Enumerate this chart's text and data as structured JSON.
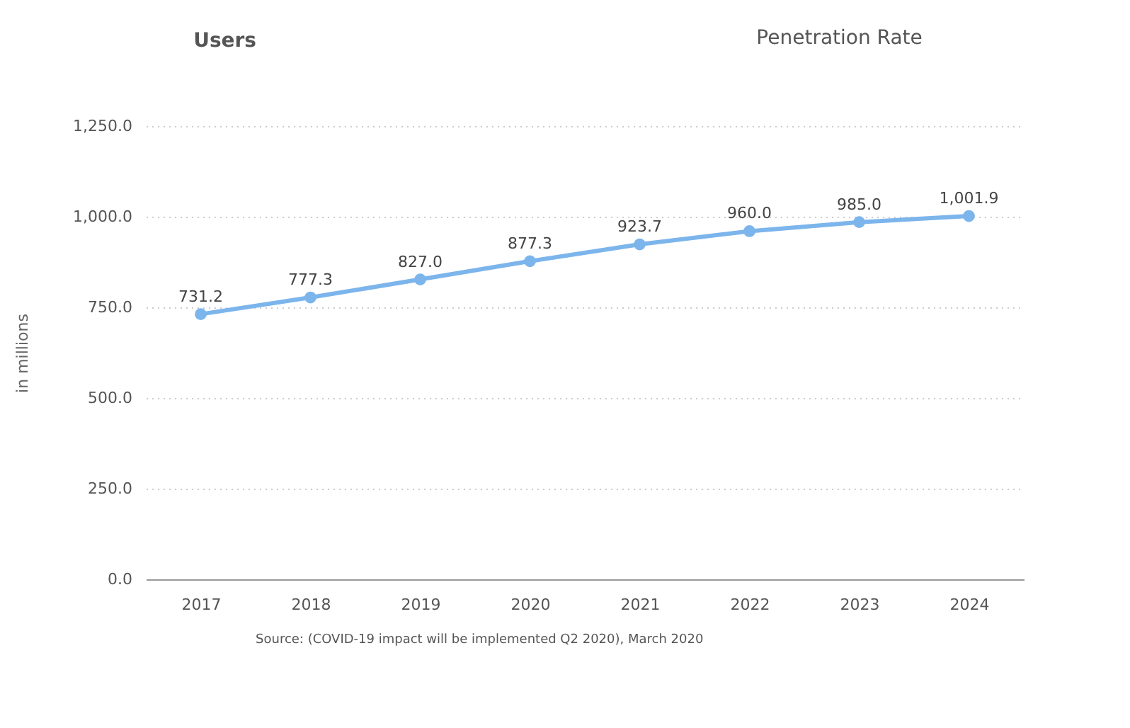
{
  "chart_data": {
    "type": "line",
    "ylabel": "in millions",
    "categories": [
      "2017",
      "2018",
      "2019",
      "2020",
      "2021",
      "2022",
      "2023",
      "2024"
    ],
    "series": [
      {
        "color": "#7cb5ec",
        "values": [
          731.2,
          777.3,
          827.0,
          877.3,
          923.7,
          960.0,
          985.0,
          1001.9
        ],
        "value_labels": [
          "731.2",
          "777.3",
          "827.0",
          "877.3",
          "923.7",
          "960.0",
          "985.0",
          "1,001.9"
        ]
      }
    ],
    "ylim": [
      0,
      1250
    ],
    "yticks": [
      {
        "value": 0,
        "label": "0.0"
      },
      {
        "value": 250,
        "label": "250.0"
      },
      {
        "value": 500,
        "label": "500.0"
      },
      {
        "value": 750,
        "label": "750.0"
      },
      {
        "value": 1000,
        "label": "1,000.0"
      },
      {
        "value": 1250,
        "label": "1,250.0"
      }
    ],
    "grid": "y",
    "marker": "circle",
    "line_style": "solid",
    "annotations": [
      "Users",
      "Penetration Rate",
      "Source: (COVID-19 impact will be implemented Q2 2020), March 2020"
    ]
  }
}
